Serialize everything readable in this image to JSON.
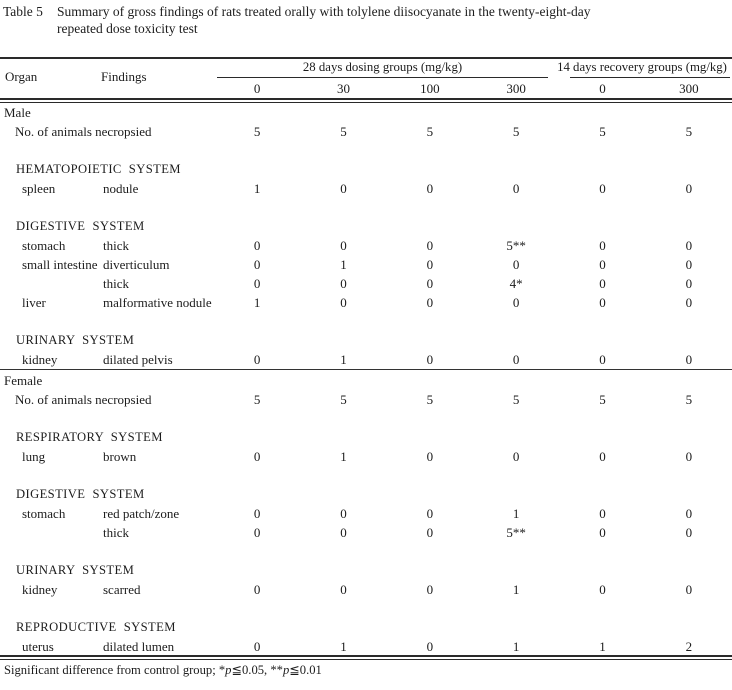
{
  "colors": {
    "background": "#ffffff",
    "text": "#1c1c1c",
    "rule": "#2a2a2a"
  },
  "title": {
    "label": "Table 5",
    "line1": "Summary of gross findings of rats treated orally with tolylene diisocyanate in the twenty-eight-day",
    "line2": "repeated dose toxicity test"
  },
  "header": {
    "organ_label": "Organ",
    "findings_label": "Findings",
    "dosing_group_label": "28 days dosing groups (mg/kg)",
    "recovery_group_label": "14 days recovery groups (mg/kg)",
    "dose_columns": [
      "0",
      "30",
      "100",
      "300",
      "0",
      "300"
    ]
  },
  "table": {
    "rows": [
      {
        "type": "sex",
        "label": "Male"
      },
      {
        "type": "count",
        "label": "No. of animals necropsied",
        "values": [
          "5",
          "5",
          "5",
          "5",
          "5",
          "5"
        ]
      },
      {
        "type": "spacer"
      },
      {
        "type": "system",
        "label": "HEMATOPOIETIC  SYSTEM"
      },
      {
        "type": "finding",
        "organ": "spleen",
        "finding": "nodule",
        "values": [
          "1",
          "0",
          "0",
          "0",
          "0",
          "0"
        ]
      },
      {
        "type": "spacer"
      },
      {
        "type": "system",
        "label": "DIGESTIVE  SYSTEM"
      },
      {
        "type": "finding",
        "organ": "stomach",
        "finding": "thick",
        "values": [
          "0",
          "0",
          "0",
          "5**",
          "0",
          "0"
        ]
      },
      {
        "type": "finding",
        "organ": "small intestine",
        "finding": "diverticulum",
        "values": [
          "0",
          "1",
          "0",
          "0",
          "0",
          "0"
        ]
      },
      {
        "type": "finding",
        "organ": "",
        "finding": "thick",
        "values": [
          "0",
          "0",
          "0",
          "4*",
          "0",
          "0"
        ]
      },
      {
        "type": "finding",
        "organ": "liver",
        "finding": "malformative nodule",
        "values": [
          "1",
          "0",
          "0",
          "0",
          "0",
          "0"
        ]
      },
      {
        "type": "spacer"
      },
      {
        "type": "system",
        "label": "URINARY  SYSTEM"
      },
      {
        "type": "finding",
        "organ": "kidney",
        "finding": "dilated pelvis",
        "values": [
          "0",
          "1",
          "0",
          "0",
          "0",
          "0"
        ]
      },
      {
        "type": "divider"
      },
      {
        "type": "sex",
        "label": "Female"
      },
      {
        "type": "count",
        "label": "No. of animals necropsied",
        "values": [
          "5",
          "5",
          "5",
          "5",
          "5",
          "5"
        ]
      },
      {
        "type": "spacer"
      },
      {
        "type": "system",
        "label": "RESPIRATORY  SYSTEM"
      },
      {
        "type": "finding",
        "organ": "lung",
        "finding": "brown",
        "values": [
          "0",
          "1",
          "0",
          "0",
          "0",
          "0"
        ]
      },
      {
        "type": "spacer"
      },
      {
        "type": "system",
        "label": "DIGESTIVE  SYSTEM"
      },
      {
        "type": "finding",
        "organ": "stomach",
        "finding": "red patch/zone",
        "values": [
          "0",
          "0",
          "0",
          "1",
          "0",
          "0"
        ]
      },
      {
        "type": "finding",
        "organ": "",
        "finding": "thick",
        "values": [
          "0",
          "0",
          "0",
          "5**",
          "0",
          "0"
        ]
      },
      {
        "type": "spacer"
      },
      {
        "type": "system",
        "label": "URINARY  SYSTEM"
      },
      {
        "type": "finding",
        "organ": "kidney",
        "finding": "scarred",
        "values": [
          "0",
          "0",
          "0",
          "1",
          "0",
          "0"
        ]
      },
      {
        "type": "spacer"
      },
      {
        "type": "system",
        "label": "REPRODUCTIVE  SYSTEM"
      },
      {
        "type": "finding",
        "organ": "uterus",
        "finding": "dilated lumen",
        "values": [
          "0",
          "1",
          "0",
          "1",
          "1",
          "2"
        ]
      }
    ]
  },
  "footnote": {
    "segments": [
      {
        "text": "Significant difference from control group; *"
      },
      {
        "text": "p",
        "italic": true
      },
      {
        "text": "≦0.05, **"
      },
      {
        "text": "p",
        "italic": true
      },
      {
        "text": "≦0.01"
      }
    ]
  }
}
